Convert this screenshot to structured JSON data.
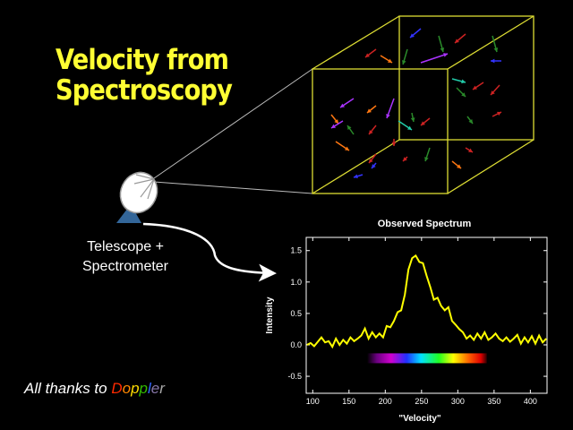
{
  "slide": {
    "title_line1": "Velocity from",
    "title_line2": "Spectroscopy",
    "telescope_label_line1": "Telescope +",
    "telescope_label_line2": "Spectrometer",
    "thanks_prefix": "All thanks to ",
    "doppler_letters": [
      {
        "ch": "D",
        "color": "#ff2a00"
      },
      {
        "ch": "o",
        "color": "#ff8800"
      },
      {
        "ch": "p",
        "color": "#ffdd00"
      },
      {
        "ch": "p",
        "color": "#33bb00"
      },
      {
        "ch": "l",
        "color": "#3366ff"
      },
      {
        "ch": "e",
        "color": "#8877aa"
      },
      {
        "ch": "r",
        "color": "#aaaaaa"
      }
    ],
    "accent_yellow": "#ffff33",
    "cube_color": "#dddd33"
  },
  "chart_data": {
    "type": "line",
    "title": "Observed Spectrum",
    "xlabel": "\"Velocity\"",
    "ylabel": "Intensity",
    "xlim": [
      91,
      423
    ],
    "ylim": [
      -0.77,
      1.71
    ],
    "xticks": [
      100,
      150,
      200,
      250,
      300,
      350,
      400
    ],
    "yticks": [
      -0.5,
      0.0,
      0.5,
      1.0,
      1.5
    ],
    "ytick_labels": [
      "-0.5",
      "0.0",
      "0.5",
      "1.0",
      "1.5"
    ],
    "series": [
      {
        "name": "spectrum",
        "color": "#ffff00",
        "x": [
          92,
          97,
          102,
          107,
          112,
          117,
          122,
          127,
          132,
          137,
          142,
          147,
          152,
          157,
          162,
          167,
          172,
          177,
          182,
          187,
          192,
          197,
          202,
          207,
          212,
          217,
          222,
          227,
          232,
          237,
          242,
          247,
          252,
          257,
          262,
          267,
          272,
          277,
          282,
          287,
          292,
          297,
          302,
          307,
          312,
          317,
          322,
          327,
          332,
          337,
          342,
          347,
          352,
          357,
          362,
          367,
          372,
          377,
          382,
          387,
          392,
          397,
          402,
          407,
          412,
          417,
          422
        ],
        "y": [
          0.0,
          0.03,
          -0.02,
          0.05,
          0.12,
          0.04,
          0.06,
          -0.03,
          0.1,
          0.0,
          0.08,
          0.02,
          0.12,
          0.06,
          0.1,
          0.15,
          0.26,
          0.1,
          0.2,
          0.12,
          0.18,
          0.12,
          0.3,
          0.28,
          0.38,
          0.52,
          0.55,
          0.8,
          1.2,
          1.38,
          1.42,
          1.32,
          1.3,
          1.1,
          0.92,
          0.72,
          0.75,
          0.62,
          0.55,
          0.6,
          0.38,
          0.32,
          0.25,
          0.2,
          0.1,
          0.15,
          0.08,
          0.18,
          0.1,
          0.2,
          0.08,
          0.12,
          0.18,
          0.1,
          0.06,
          0.12,
          0.05,
          0.1,
          0.16,
          0.02,
          0.12,
          0.04,
          0.14,
          0.02,
          0.15,
          0.04,
          0.1
        ]
      }
    ],
    "colorbar": {
      "x_range": [
        175,
        340
      ],
      "y_level": -0.22,
      "label": "visible spectrum"
    },
    "grid": false,
    "legend": "none"
  }
}
